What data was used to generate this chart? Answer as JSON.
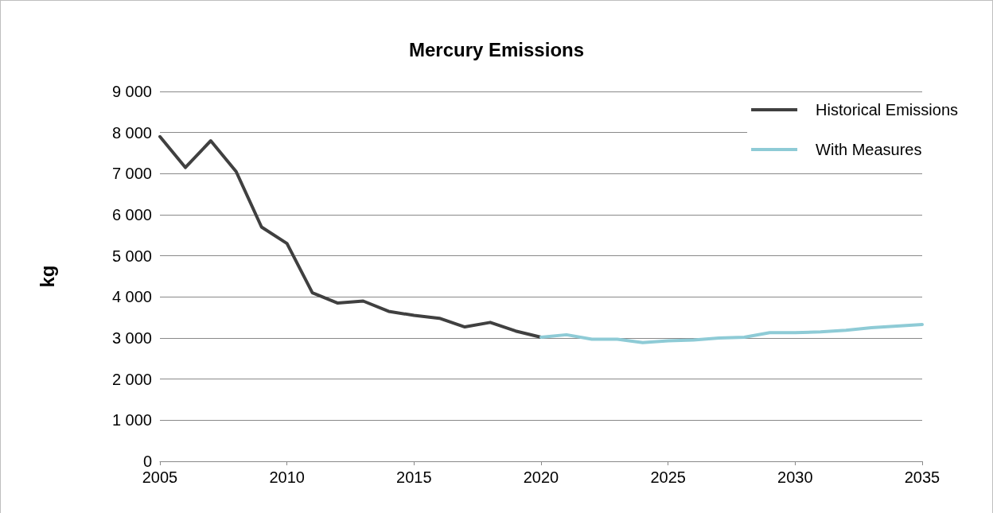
{
  "chart_data": {
    "type": "line",
    "title": "Mercury Emissions",
    "ylabel": "kg",
    "series": [
      {
        "name": "Historical Emissions",
        "color": "#404040",
        "x": [
          2005,
          2006,
          2007,
          2008,
          2009,
          2010,
          2011,
          2012,
          2013,
          2014,
          2015,
          2016,
          2017,
          2018,
          2019,
          2020
        ],
        "values": [
          7900,
          7150,
          7800,
          7050,
          5700,
          5300,
          4100,
          3850,
          3900,
          3650,
          3550,
          3480,
          3270,
          3380,
          3170,
          3020
        ]
      },
      {
        "name": "With Measures",
        "color": "#8ecbd6",
        "x": [
          2020,
          2021,
          2022,
          2023,
          2024,
          2025,
          2026,
          2027,
          2028,
          2029,
          2030,
          2031,
          2032,
          2033,
          2034,
          2035
        ],
        "values": [
          3020,
          3080,
          2970,
          2970,
          2890,
          2930,
          2950,
          3000,
          3020,
          3130,
          3130,
          3150,
          3190,
          3250,
          3290,
          3330
        ]
      }
    ],
    "xlim": [
      2005,
      2035
    ],
    "xticks": [
      2005,
      2010,
      2015,
      2020,
      2025,
      2030,
      2035
    ],
    "ylim": [
      0,
      9000
    ],
    "yticks": [
      0,
      {
        "value": 1000,
        "label": "1 000"
      },
      {
        "value": 2000,
        "label": "2 000"
      },
      {
        "value": 3000,
        "label": "3 000"
      },
      {
        "value": 4000,
        "label": "4 000"
      },
      {
        "value": 5000,
        "label": "5 000"
      },
      {
        "value": 6000,
        "label": "6 000"
      },
      {
        "value": 7000,
        "label": "7 000"
      },
      {
        "value": 8000,
        "label": "8 000"
      },
      {
        "value": 9000,
        "label": "9 000"
      }
    ],
    "grid": "y",
    "legend": "top right",
    "marker": "none",
    "line_style": "solid"
  }
}
